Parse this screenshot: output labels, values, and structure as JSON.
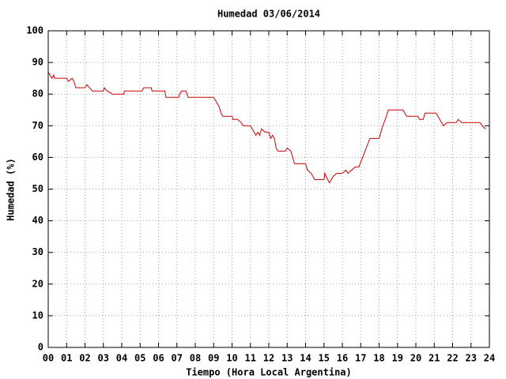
{
  "chart_data": {
    "type": "line",
    "title": "Humedad 03/06/2014",
    "x_label": "Tiempo (Hora Local Argentina)",
    "y_label": "Humedad (%)",
    "x": [
      0.0,
      0.1,
      0.2,
      0.3,
      0.35,
      0.5,
      1.0,
      1.1,
      1.3,
      1.4,
      1.5,
      2.0,
      2.1,
      2.25,
      2.4,
      3.0,
      3.05,
      3.2,
      3.5,
      4.1,
      4.15,
      5.1,
      5.2,
      5.6,
      5.65,
      6.35,
      6.4,
      7.1,
      7.15,
      7.25,
      7.5,
      7.6,
      9.0,
      9.1,
      9.3,
      9.4,
      9.5,
      10.0,
      10.05,
      10.3,
      10.5,
      10.6,
      11.0,
      11.1,
      11.2,
      11.3,
      11.4,
      11.5,
      11.6,
      11.8,
      12.0,
      12.1,
      12.2,
      12.3,
      12.4,
      12.5,
      12.9,
      13.0,
      13.2,
      13.3,
      13.4,
      14.0,
      14.1,
      14.3,
      14.4,
      14.5,
      15.0,
      15.05,
      15.2,
      15.3,
      15.5,
      15.7,
      16.0,
      16.2,
      16.3,
      16.5,
      16.7,
      16.9,
      17.1,
      17.3,
      17.5,
      18.0,
      18.2,
      18.4,
      18.5,
      19.3,
      19.4,
      19.5,
      20.1,
      20.2,
      20.4,
      20.5,
      21.1,
      21.3,
      21.5,
      21.7,
      22.2,
      22.3,
      22.5,
      23.5,
      23.6,
      23.8
    ],
    "series": [
      {
        "name": "Humedad",
        "color": "#cc0000",
        "values": [
          87,
          86,
          85,
          86,
          85,
          85,
          85,
          84,
          85,
          84,
          82,
          82,
          83,
          82,
          81,
          81,
          82,
          81,
          80,
          80,
          81,
          81,
          82,
          82,
          81,
          81,
          79,
          79,
          80,
          81,
          81,
          79,
          79,
          78,
          76,
          74,
          73,
          73,
          72,
          72,
          71,
          70,
          70,
          69,
          68,
          67,
          68,
          67,
          69,
          68,
          68,
          66,
          67,
          66,
          63,
          62,
          62,
          63,
          62,
          60,
          58,
          58,
          56,
          55,
          54,
          53,
          53,
          55,
          53,
          52,
          54,
          55,
          55,
          56,
          55,
          56,
          57,
          57,
          60,
          63,
          66,
          66,
          70,
          73,
          75,
          75,
          74,
          73,
          73,
          72,
          72,
          74,
          74,
          72,
          70,
          71,
          71,
          72,
          71,
          71,
          70,
          69
        ]
      }
    ],
    "xlim": [
      0,
      24
    ],
    "xticks": [
      {
        "value": 0,
        "label": "00"
      },
      {
        "value": 1,
        "label": "01"
      },
      {
        "value": 2,
        "label": "02"
      },
      {
        "value": 3,
        "label": "03"
      },
      {
        "value": 4,
        "label": "04"
      },
      {
        "value": 5,
        "label": "05"
      },
      {
        "value": 6,
        "label": "06"
      },
      {
        "value": 7,
        "label": "07"
      },
      {
        "value": 8,
        "label": "08"
      },
      {
        "value": 9,
        "label": "09"
      },
      10,
      11,
      12,
      13,
      14,
      15,
      16,
      17,
      18,
      19,
      20,
      21,
      22,
      23,
      24
    ],
    "ylim": [
      0,
      100
    ],
    "yticks": [
      0,
      10,
      20,
      30,
      40,
      50,
      60,
      70,
      80,
      90,
      100
    ],
    "grid": true
  }
}
